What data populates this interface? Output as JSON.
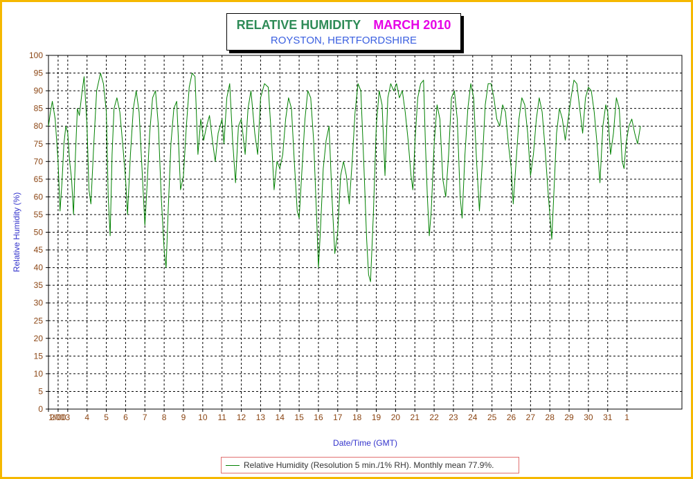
{
  "title": {
    "main": "RELATIVE HUMIDITY",
    "month": "MARCH 2010",
    "subtitle": "ROYSTON, HERTFORDSHIRE"
  },
  "legend": {
    "label": "Relative Humidity (Resolution 5 min./1% RH). Monthly mean 77.9%."
  },
  "colors": {
    "frame": "#f5b800",
    "series": "#008000",
    "title_green": "#2e8b57",
    "title_magenta": "#e600e6",
    "subtitle_blue": "#3a5fe0",
    "axis_label_blue": "#3333cc",
    "tick_label_brown": "#8b4513"
  },
  "chart_data": {
    "type": "line",
    "title": "RELATIVE HUMIDITY MARCH 2010",
    "subtitle": "ROYSTON, HERTFORDSHIRE",
    "xlabel": "Date/Time (GMT)",
    "ylabel": "Relative Humidity (%)",
    "ylim": [
      0,
      100
    ],
    "yticks": [
      0,
      5,
      10,
      15,
      20,
      25,
      30,
      35,
      40,
      45,
      50,
      55,
      60,
      65,
      70,
      75,
      80,
      85,
      90,
      95,
      100
    ],
    "xlim": [
      0,
      32.85
    ],
    "xticks": [
      {
        "x": 0,
        "label": "1/00"
      },
      {
        "x": 0.5,
        "label": "2/00"
      },
      {
        "x": 1.0,
        "label": "3"
      },
      {
        "x": 2.0,
        "label": "4"
      },
      {
        "x": 3.0,
        "label": "5"
      },
      {
        "x": 4.0,
        "label": "6"
      },
      {
        "x": 5.0,
        "label": "7"
      },
      {
        "x": 6.0,
        "label": "8"
      },
      {
        "x": 7.0,
        "label": "9"
      },
      {
        "x": 8.0,
        "label": "10"
      },
      {
        "x": 9.0,
        "label": "11"
      },
      {
        "x": 10.0,
        "label": "12"
      },
      {
        "x": 11.0,
        "label": "13"
      },
      {
        "x": 12.0,
        "label": "14"
      },
      {
        "x": 13.0,
        "label": "15"
      },
      {
        "x": 14.0,
        "label": "16"
      },
      {
        "x": 15.0,
        "label": "17"
      },
      {
        "x": 16.0,
        "label": "18"
      },
      {
        "x": 17.0,
        "label": "19"
      },
      {
        "x": 18.0,
        "label": "20"
      },
      {
        "x": 19.0,
        "label": "21"
      },
      {
        "x": 20.0,
        "label": "22"
      },
      {
        "x": 21.0,
        "label": "23"
      },
      {
        "x": 22.0,
        "label": "24"
      },
      {
        "x": 23.0,
        "label": "25"
      },
      {
        "x": 24.0,
        "label": "26"
      },
      {
        "x": 25.0,
        "label": "27"
      },
      {
        "x": 26.0,
        "label": "28"
      },
      {
        "x": 27.0,
        "label": "29"
      },
      {
        "x": 28.0,
        "label": "30"
      },
      {
        "x": 29.0,
        "label": "31"
      },
      {
        "x": 30.0,
        "label": "1"
      }
    ],
    "grid": true,
    "grid_style": "dashed",
    "legend_position": "bottom",
    "series": [
      {
        "name": "Relative Humidity (Resolution 5 min./1% RH). Monthly mean 77.9%.",
        "points": [
          [
            0.0,
            80
          ],
          [
            0.1,
            84
          ],
          [
            0.2,
            87
          ],
          [
            0.35,
            82
          ],
          [
            0.5,
            70
          ],
          [
            0.6,
            56
          ],
          [
            0.7,
            64
          ],
          [
            0.8,
            75
          ],
          [
            0.9,
            80
          ],
          [
            1.0,
            78
          ],
          [
            1.1,
            70
          ],
          [
            1.2,
            65
          ],
          [
            1.3,
            55
          ],
          [
            1.4,
            72
          ],
          [
            1.5,
            85
          ],
          [
            1.6,
            83
          ],
          [
            1.75,
            90
          ],
          [
            1.85,
            94
          ],
          [
            2.0,
            80
          ],
          [
            2.1,
            62
          ],
          [
            2.2,
            58
          ],
          [
            2.35,
            75
          ],
          [
            2.5,
            90
          ],
          [
            2.7,
            95
          ],
          [
            2.85,
            92
          ],
          [
            3.0,
            84
          ],
          [
            3.1,
            60
          ],
          [
            3.2,
            49
          ],
          [
            3.3,
            72
          ],
          [
            3.4,
            85
          ],
          [
            3.55,
            88
          ],
          [
            3.7,
            84
          ],
          [
            3.85,
            75
          ],
          [
            4.0,
            65
          ],
          [
            4.1,
            55
          ],
          [
            4.25,
            72
          ],
          [
            4.4,
            85
          ],
          [
            4.55,
            90
          ],
          [
            4.7,
            84
          ],
          [
            4.85,
            68
          ],
          [
            5.0,
            52
          ],
          [
            5.1,
            62
          ],
          [
            5.25,
            78
          ],
          [
            5.4,
            88
          ],
          [
            5.55,
            90
          ],
          [
            5.7,
            80
          ],
          [
            5.85,
            60
          ],
          [
            6.0,
            45
          ],
          [
            6.1,
            40
          ],
          [
            6.2,
            55
          ],
          [
            6.35,
            75
          ],
          [
            6.5,
            85
          ],
          [
            6.65,
            87
          ],
          [
            6.75,
            75
          ],
          [
            6.85,
            62
          ],
          [
            7.0,
            66
          ],
          [
            7.15,
            80
          ],
          [
            7.3,
            91
          ],
          [
            7.45,
            95
          ],
          [
            7.6,
            94
          ],
          [
            7.75,
            72
          ],
          [
            7.9,
            82
          ],
          [
            8.05,
            76
          ],
          [
            8.2,
            80
          ],
          [
            8.35,
            83
          ],
          [
            8.5,
            76
          ],
          [
            8.65,
            70
          ],
          [
            8.8,
            78
          ],
          [
            9.0,
            82
          ],
          [
            9.1,
            75
          ],
          [
            9.25,
            88
          ],
          [
            9.4,
            92
          ],
          [
            9.55,
            76
          ],
          [
            9.7,
            64
          ],
          [
            9.85,
            80
          ],
          [
            10.0,
            82
          ],
          [
            10.2,
            72
          ],
          [
            10.35,
            85
          ],
          [
            10.5,
            90
          ],
          [
            10.7,
            78
          ],
          [
            10.85,
            72
          ],
          [
            11.0,
            88
          ],
          [
            11.2,
            92
          ],
          [
            11.4,
            91
          ],
          [
            11.55,
            78
          ],
          [
            11.7,
            62
          ],
          [
            11.85,
            70
          ],
          [
            12.0,
            68
          ],
          [
            12.15,
            72
          ],
          [
            12.3,
            82
          ],
          [
            12.45,
            88
          ],
          [
            12.6,
            85
          ],
          [
            12.75,
            70
          ],
          [
            12.9,
            56
          ],
          [
            13.0,
            54
          ],
          [
            13.15,
            68
          ],
          [
            13.3,
            82
          ],
          [
            13.45,
            90
          ],
          [
            13.6,
            88
          ],
          [
            13.75,
            76
          ],
          [
            13.9,
            55
          ],
          [
            14.0,
            40
          ],
          [
            14.1,
            50
          ],
          [
            14.25,
            68
          ],
          [
            14.4,
            76
          ],
          [
            14.55,
            80
          ],
          [
            14.7,
            60
          ],
          [
            14.85,
            44
          ],
          [
            15.0,
            50
          ],
          [
            15.15,
            66
          ],
          [
            15.3,
            70
          ],
          [
            15.45,
            66
          ],
          [
            15.6,
            58
          ],
          [
            15.75,
            70
          ],
          [
            15.9,
            84
          ],
          [
            16.05,
            92
          ],
          [
            16.2,
            90
          ],
          [
            16.35,
            70
          ],
          [
            16.5,
            48
          ],
          [
            16.6,
            38
          ],
          [
            16.7,
            36
          ],
          [
            16.85,
            55
          ],
          [
            17.0,
            80
          ],
          [
            17.15,
            90
          ],
          [
            17.3,
            86
          ],
          [
            17.45,
            66
          ],
          [
            17.6,
            88
          ],
          [
            17.75,
            92
          ],
          [
            17.9,
            90
          ],
          [
            18.05,
            92
          ],
          [
            18.2,
            88
          ],
          [
            18.35,
            90
          ],
          [
            18.5,
            84
          ],
          [
            18.65,
            76
          ],
          [
            18.8,
            66
          ],
          [
            18.9,
            62
          ],
          [
            19.0,
            75
          ],
          [
            19.15,
            88
          ],
          [
            19.3,
            92
          ],
          [
            19.45,
            93
          ],
          [
            19.55,
            75
          ],
          [
            19.65,
            60
          ],
          [
            19.75,
            49
          ],
          [
            19.85,
            56
          ],
          [
            20.0,
            75
          ],
          [
            20.15,
            86
          ],
          [
            20.3,
            82
          ],
          [
            20.45,
            65
          ],
          [
            20.6,
            60
          ],
          [
            20.75,
            72
          ],
          [
            20.9,
            88
          ],
          [
            21.05,
            90
          ],
          [
            21.2,
            82
          ],
          [
            21.35,
            60
          ],
          [
            21.45,
            54
          ],
          [
            21.6,
            72
          ],
          [
            21.75,
            85
          ],
          [
            21.9,
            92
          ],
          [
            22.05,
            88
          ],
          [
            22.2,
            70
          ],
          [
            22.35,
            56
          ],
          [
            22.5,
            70
          ],
          [
            22.65,
            86
          ],
          [
            22.8,
            92
          ],
          [
            22.95,
            92
          ],
          [
            23.1,
            88
          ],
          [
            23.25,
            82
          ],
          [
            23.4,
            80
          ],
          [
            23.55,
            86
          ],
          [
            23.7,
            84
          ],
          [
            23.85,
            75
          ],
          [
            24.0,
            68
          ],
          [
            24.1,
            58
          ],
          [
            24.25,
            70
          ],
          [
            24.4,
            82
          ],
          [
            24.55,
            88
          ],
          [
            24.7,
            86
          ],
          [
            24.85,
            78
          ],
          [
            25.0,
            66
          ],
          [
            25.15,
            72
          ],
          [
            25.3,
            82
          ],
          [
            25.45,
            88
          ],
          [
            25.6,
            84
          ],
          [
            25.75,
            74
          ],
          [
            25.9,
            62
          ],
          [
            26.0,
            55
          ],
          [
            26.1,
            48
          ],
          [
            26.2,
            60
          ],
          [
            26.35,
            78
          ],
          [
            26.5,
            85
          ],
          [
            26.65,
            82
          ],
          [
            26.8,
            76
          ],
          [
            26.95,
            82
          ],
          [
            27.1,
            88
          ],
          [
            27.25,
            93
          ],
          [
            27.4,
            92
          ],
          [
            27.55,
            85
          ],
          [
            27.7,
            78
          ],
          [
            27.85,
            88
          ],
          [
            28.0,
            91
          ],
          [
            28.15,
            90
          ],
          [
            28.3,
            84
          ],
          [
            28.45,
            75
          ],
          [
            28.6,
            64
          ],
          [
            28.75,
            80
          ],
          [
            28.9,
            86
          ],
          [
            29.0,
            84
          ],
          [
            29.15,
            72
          ],
          [
            29.3,
            78
          ],
          [
            29.45,
            88
          ],
          [
            29.6,
            85
          ],
          [
            29.75,
            70
          ],
          [
            29.85,
            68
          ],
          [
            29.95,
            75
          ],
          [
            30.1,
            80
          ],
          [
            30.25,
            82
          ],
          [
            30.4,
            78
          ],
          [
            30.55,
            75
          ],
          [
            30.7,
            80
          ]
        ]
      }
    ]
  }
}
